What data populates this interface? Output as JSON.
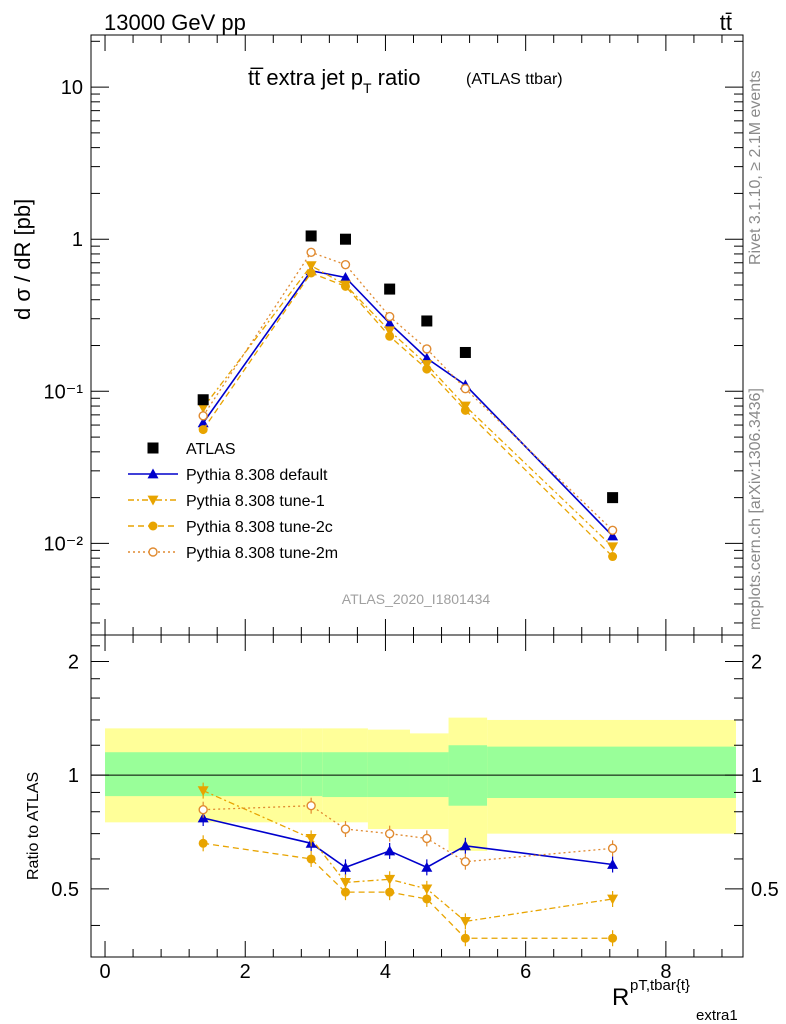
{
  "header": {
    "energy_label": "13000 GeV pp",
    "process_label": "tt̄",
    "title_main": "tt̅ extra jet p",
    "title_sub": "T",
    "title_tail": " ratio",
    "title_note": "(ATLAS ttbar)",
    "analysis_id": "ATLAS_2020_I1801434",
    "side_rivet": "Rivet 3.1.10, ≥ 2.1M events",
    "side_mcplots": "mcplots.cern.ch [arXiv:1306.3436]"
  },
  "axes": {
    "ylabel_top": "d σ / dR [pb]",
    "ylabel_ratio": "Ratio to ATLAS",
    "xlabel": "R",
    "xlabel_sup": "pT,tbar{t}",
    "xlabel_sub": "extra1",
    "x_ticks": [
      "0",
      "2",
      "4",
      "6",
      "8"
    ],
    "y_ticks_top": [
      "10⁻²",
      "10⁻¹",
      "1",
      "10"
    ],
    "y_ticks_ratio": [
      "0.5",
      "1",
      "2"
    ]
  },
  "chart_data": {
    "type": "scatter",
    "x_range": [
      -0.2,
      9.1
    ],
    "y_range_top": [
      0.0025,
      22
    ],
    "y_scale_top": "log",
    "y_range_ratio": [
      0.33,
      2.35
    ],
    "y_scale_ratio": "log",
    "legend_position": "middle-left",
    "bins": [
      [
        0.0,
        2.8
      ],
      [
        2.8,
        3.1
      ],
      [
        3.1,
        3.75
      ],
      [
        3.75,
        4.35
      ],
      [
        4.35,
        4.9
      ],
      [
        4.9,
        5.45
      ],
      [
        5.45,
        9.0
      ]
    ],
    "x": [
      1.4,
      2.94,
      3.43,
      4.06,
      4.59,
      5.14,
      7.24
    ],
    "data": {
      "name": "ATLAS",
      "values": [
        0.088,
        1.05,
        1.0,
        0.47,
        0.29,
        0.18,
        0.02
      ]
    },
    "band_inner": [
      [
        0.88,
        1.15
      ],
      [
        0.88,
        1.15
      ],
      [
        0.875,
        1.15
      ],
      [
        0.875,
        1.15
      ],
      [
        0.875,
        1.15
      ],
      [
        0.83,
        1.2
      ],
      [
        0.87,
        1.19
      ]
    ],
    "band_outer": [
      [
        0.75,
        1.33
      ],
      [
        0.75,
        1.33
      ],
      [
        0.75,
        1.33
      ],
      [
        0.72,
        1.32
      ],
      [
        0.72,
        1.29
      ],
      [
        0.63,
        1.42
      ],
      [
        0.7,
        1.4
      ]
    ],
    "series": [
      {
        "name": "Pythia 8.308 default",
        "color": "#0000cc",
        "marker": "triangle-up",
        "dash": "",
        "values": [
          0.062,
          0.62,
          0.56,
          0.28,
          0.165,
          0.11,
          0.0112
        ],
        "ratio": [
          0.77,
          0.66,
          0.57,
          0.63,
          0.57,
          0.65,
          0.58
        ]
      },
      {
        "name": "Pythia 8.308 tune-1",
        "color": "#e8a400",
        "marker": "triangle-down",
        "dash": "6,3,2,3",
        "values": [
          0.078,
          0.67,
          0.5,
          0.25,
          0.15,
          0.08,
          0.0095
        ],
        "ratio": [
          0.91,
          0.68,
          0.52,
          0.53,
          0.5,
          0.41,
          0.47
        ]
      },
      {
        "name": "Pythia 8.308 tune-2c",
        "color": "#e8a400",
        "marker": "circle",
        "dash": "6,4",
        "values": [
          0.056,
          0.6,
          0.49,
          0.23,
          0.14,
          0.075,
          0.0082
        ],
        "ratio": [
          0.66,
          0.6,
          0.49,
          0.49,
          0.47,
          0.37,
          0.37
        ]
      },
      {
        "name": "Pythia 8.308 tune-2m",
        "color": "#e08a30",
        "marker": "circle-open",
        "dash": "2,3",
        "values": [
          0.069,
          0.82,
          0.68,
          0.31,
          0.19,
          0.104,
          0.0122
        ],
        "ratio": [
          0.81,
          0.83,
          0.72,
          0.7,
          0.68,
          0.59,
          0.64
        ]
      }
    ]
  }
}
